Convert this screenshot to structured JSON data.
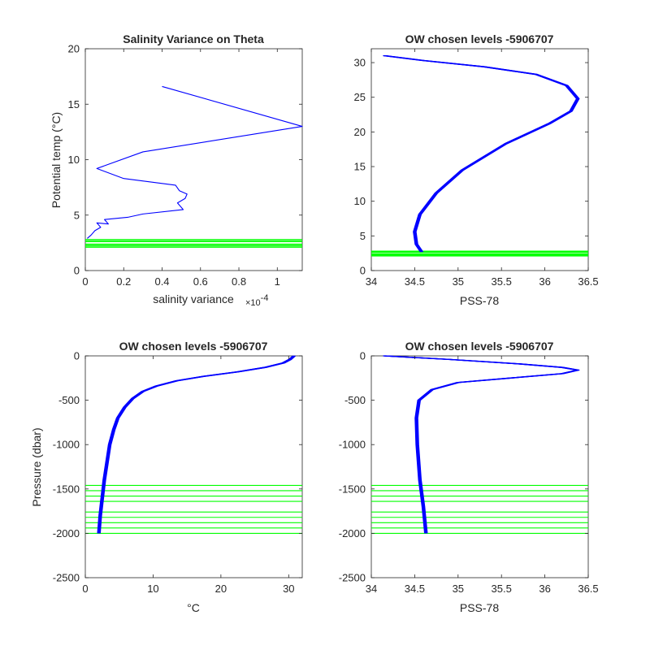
{
  "colors": {
    "profile": "#0000ff",
    "levels": "#00ff00",
    "axes": "#262626",
    "background": "#ffffff"
  },
  "chart_data": [
    {
      "id": "tl",
      "type": "line",
      "title": "Salinity Variance on Theta",
      "xlabel": "salinity variance",
      "xlabel_exponent": "×10",
      "xlabel_exponent_power": "-4",
      "ylabel": "Potential temp (°C)",
      "xlim": [
        0,
        1.13
      ],
      "ylim": [
        0,
        20
      ],
      "xticks": [
        0,
        0.2,
        0.4,
        0.6,
        0.8,
        1
      ],
      "xtick_labels": [
        "0",
        "0.2",
        "0.4",
        "0.6",
        "0.8",
        "1"
      ],
      "yticks": [
        0,
        5,
        10,
        15,
        20
      ],
      "ytick_labels": [
        "0",
        "5",
        "10",
        "15",
        "20"
      ],
      "series": [
        {
          "x": [
            0.4,
            1.13,
            0.3,
            0.06,
            0.2,
            0.47,
            0.49,
            0.53,
            0.52,
            0.48,
            0.51,
            0.3,
            0.22,
            0.1,
            0.12,
            0.06,
            0.08,
            0.05,
            0.03,
            0.01
          ],
          "y": [
            16.6,
            13.0,
            10.7,
            9.2,
            8.3,
            7.7,
            7.2,
            6.9,
            6.5,
            6.1,
            5.5,
            5.1,
            4.8,
            4.6,
            4.2,
            4.3,
            3.9,
            3.6,
            3.2,
            2.9
          ]
        }
      ],
      "hlines": [
        2.1,
        2.2,
        2.3,
        2.4,
        2.6,
        2.7,
        2.8
      ]
    },
    {
      "id": "tr",
      "type": "line",
      "title": "OW chosen levels -5906707",
      "xlabel": "PSS-78",
      "ylabel": "",
      "xlim": [
        34,
        36.5
      ],
      "ylim": [
        0,
        32
      ],
      "xticks": [
        34,
        34.5,
        35,
        35.5,
        36,
        36.5
      ],
      "xtick_labels": [
        "34",
        "34.5",
        "35",
        "35.5",
        "36",
        "36.5"
      ],
      "yticks": [
        0,
        5,
        10,
        15,
        20,
        25,
        30
      ],
      "ytick_labels": [
        "0",
        "5",
        "10",
        "15",
        "20",
        "25",
        "30"
      ],
      "series": [
        {
          "x": [
            34.15,
            34.6,
            35.3,
            35.9,
            36.25,
            36.38,
            36.3,
            36.05,
            35.55,
            35.05,
            34.75,
            34.56,
            34.5,
            34.52,
            34.58
          ],
          "y": [
            31,
            30.3,
            29.4,
            28.3,
            26.7,
            24.8,
            23,
            21.2,
            18.3,
            14.5,
            11.2,
            8.1,
            5.6,
            3.8,
            2.7
          ]
        }
      ],
      "hlines": [
        2.1,
        2.2,
        2.3,
        2.4,
        2.6,
        2.7,
        2.8
      ]
    },
    {
      "id": "bl",
      "type": "line",
      "title": "OW chosen levels -5906707",
      "xlabel": "°C",
      "ylabel": "Pressure (dbar)",
      "xlim": [
        0,
        32
      ],
      "ylim": [
        -2500,
        0
      ],
      "xticks": [
        0,
        10,
        20,
        30
      ],
      "xtick_labels": [
        "0",
        "10",
        "20",
        "30"
      ],
      "yticks": [
        -2500,
        -2000,
        -1500,
        -1000,
        -500,
        0
      ],
      "ytick_labels": [
        "-2500",
        "-2000",
        "-1500",
        "-1000",
        "-500",
        "0"
      ],
      "series": [
        {
          "x": [
            30.8,
            30.2,
            29.2,
            26.5,
            22.5,
            17.5,
            13.5,
            10.5,
            8.5,
            7.0,
            5.8,
            4.8,
            4.2,
            3.6,
            3.2,
            2.8,
            2.5,
            2.2,
            2.0
          ],
          "y": [
            0,
            -40,
            -80,
            -130,
            -180,
            -230,
            -280,
            -340,
            -400,
            -480,
            -580,
            -700,
            -830,
            -1000,
            -1200,
            -1400,
            -1600,
            -1800,
            -2000
          ]
        }
      ],
      "hlines": [
        -1460,
        -1520,
        -1580,
        -1640,
        -1760,
        -1820,
        -1880,
        -1940,
        -2000
      ]
    },
    {
      "id": "br",
      "type": "line",
      "title": "OW chosen levels -5906707",
      "xlabel": "PSS-78",
      "ylabel": "",
      "xlim": [
        34,
        36.5
      ],
      "ylim": [
        -2500,
        0
      ],
      "xticks": [
        34,
        34.5,
        35,
        35.5,
        36,
        36.5
      ],
      "xtick_labels": [
        "34",
        "34.5",
        "35",
        "35.5",
        "36",
        "36.5"
      ],
      "yticks": [
        -2500,
        -2000,
        -1500,
        -1000,
        -500,
        0
      ],
      "ytick_labels": [
        "-2500",
        "-2000",
        "-1500",
        "-1000",
        "-500",
        "0"
      ],
      "series": [
        {
          "x": [
            34.15,
            34.9,
            35.7,
            36.2,
            36.38,
            36.2,
            35.6,
            35.0,
            34.7,
            34.55,
            34.52,
            34.53,
            34.56,
            34.6,
            34.63
          ],
          "y": [
            0,
            -40,
            -90,
            -130,
            -160,
            -200,
            -250,
            -300,
            -380,
            -500,
            -700,
            -1000,
            -1400,
            -1700,
            -2000
          ]
        }
      ],
      "hlines": [
        -1460,
        -1520,
        -1580,
        -1640,
        -1760,
        -1820,
        -1880,
        -1940,
        -2000
      ]
    }
  ]
}
